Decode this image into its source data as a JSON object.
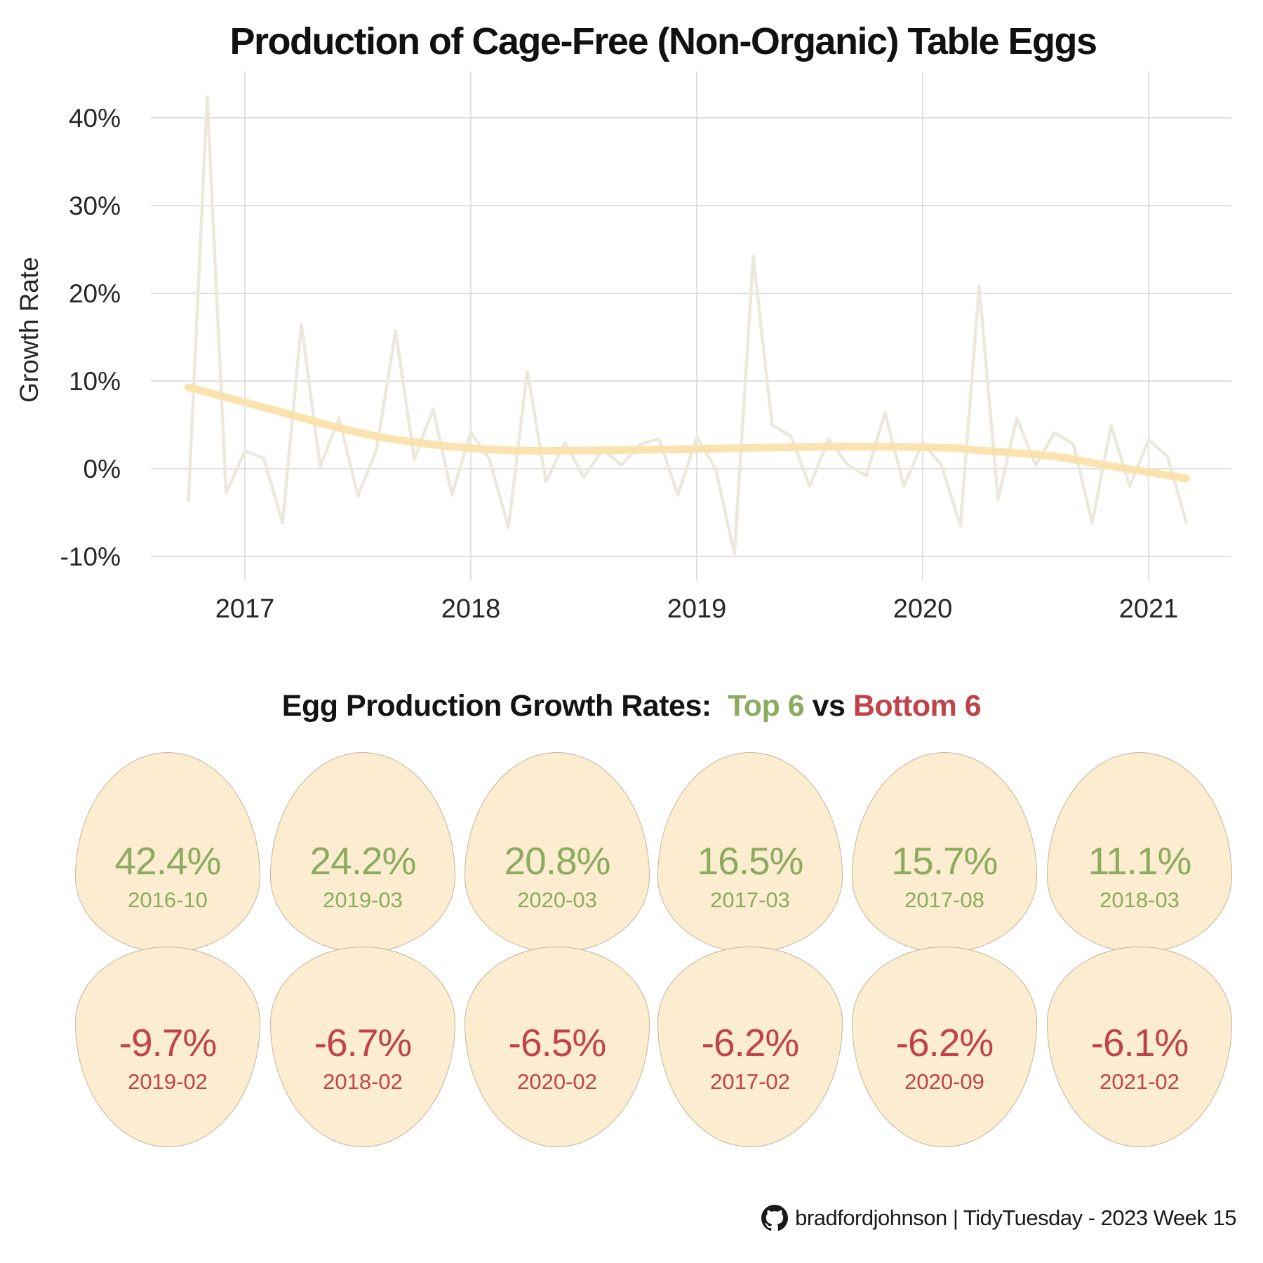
{
  "title": "Production of Cage-Free (Non-Organic) Table Eggs",
  "chart_data": {
    "type": "line",
    "title": "Production of Cage-Free (Non-Organic) Table Eggs",
    "xlabel": "",
    "ylabel": "Growth Rate",
    "x_ticks": [
      "2017",
      "2018",
      "2019",
      "2020",
      "2021"
    ],
    "y_tick_values": [
      40,
      30,
      20,
      10,
      0,
      -10
    ],
    "y_tick_labels": [
      "40%",
      "30%",
      "20%",
      "10%",
      "0%",
      "-10%"
    ],
    "ylim": [
      -13,
      46
    ],
    "grid": true,
    "legend": "none",
    "series": [
      {
        "name": "monthly-growth-rate",
        "color": "#ece8dd",
        "x": [
          "2016-09",
          "2016-10",
          "2016-11",
          "2016-12",
          "2017-01",
          "2017-02",
          "2017-03",
          "2017-04",
          "2017-05",
          "2017-06",
          "2017-07",
          "2017-08",
          "2017-09",
          "2017-10",
          "2017-11",
          "2017-12",
          "2018-01",
          "2018-02",
          "2018-03",
          "2018-04",
          "2018-05",
          "2018-06",
          "2018-07",
          "2018-08",
          "2018-09",
          "2018-10",
          "2018-11",
          "2018-12",
          "2019-01",
          "2019-02",
          "2019-03",
          "2019-04",
          "2019-05",
          "2019-06",
          "2019-07",
          "2019-08",
          "2019-09",
          "2019-10",
          "2019-11",
          "2019-12",
          "2020-01",
          "2020-02",
          "2020-03",
          "2020-04",
          "2020-05",
          "2020-06",
          "2020-07",
          "2020-08",
          "2020-09",
          "2020-10",
          "2020-11",
          "2020-12",
          "2021-01",
          "2021-02"
        ],
        "values": [
          -3.6,
          42.4,
          -2.8,
          2.0,
          1.2,
          -6.2,
          16.5,
          0.2,
          5.8,
          -3.1,
          2.2,
          15.7,
          1.1,
          6.8,
          -3.0,
          4.2,
          1.0,
          -6.7,
          11.1,
          -1.5,
          3.0,
          -1.0,
          2.2,
          0.4,
          2.8,
          3.4,
          -3.0,
          3.6,
          0.0,
          -9.7,
          24.2,
          5.0,
          3.7,
          -2.0,
          3.4,
          0.5,
          -0.8,
          6.4,
          -2.0,
          3.0,
          0.4,
          -6.5,
          20.8,
          -3.5,
          5.8,
          0.4,
          4.1,
          2.8,
          -6.2,
          4.9,
          -2.0,
          3.3,
          1.4,
          -6.1
        ]
      },
      {
        "name": "smoothed-trend",
        "color": "#fbe2ab",
        "x": [
          "2016-09",
          "2017-01",
          "2017-07",
          "2018-01",
          "2018-07",
          "2019-01",
          "2019-07",
          "2020-01",
          "2020-03",
          "2020-07",
          "2020-10",
          "2021-02"
        ],
        "values": [
          9.3,
          7.0,
          3.7,
          2.2,
          2.1,
          2.3,
          2.5,
          2.4,
          2.1,
          1.4,
          0.3,
          -1.1
        ]
      }
    ]
  },
  "egg_section": {
    "title_prefix": "Egg Production Growth Rates:",
    "title_top": "Top 6",
    "title_vs": "vs",
    "title_bottom": "Bottom 6",
    "top_color": "#8cab5f",
    "bottom_color": "#bf4348",
    "egg_fill": "#fcecd0",
    "top6": [
      {
        "value": "42.4%",
        "date": "2016-10"
      },
      {
        "value": "24.2%",
        "date": "2019-03"
      },
      {
        "value": "20.8%",
        "date": "2020-03"
      },
      {
        "value": "16.5%",
        "date": "2017-03"
      },
      {
        "value": "15.7%",
        "date": "2017-08"
      },
      {
        "value": "11.1%",
        "date": "2018-03"
      }
    ],
    "bottom6": [
      {
        "value": "-9.7%",
        "date": "2019-02"
      },
      {
        "value": "-6.7%",
        "date": "2018-02"
      },
      {
        "value": "-6.5%",
        "date": "2020-02"
      },
      {
        "value": "-6.2%",
        "date": "2017-02"
      },
      {
        "value": "-6.2%",
        "date": "2020-09"
      },
      {
        "value": "-6.1%",
        "date": "2021-02"
      }
    ]
  },
  "footer": {
    "icon": "github-icon",
    "text": "bradfordjohnson | TidyTuesday - 2023 Week 15"
  },
  "colors": {
    "gridline": "#d5d5d5",
    "tick_text": "#262626",
    "title_text": "#111111"
  }
}
